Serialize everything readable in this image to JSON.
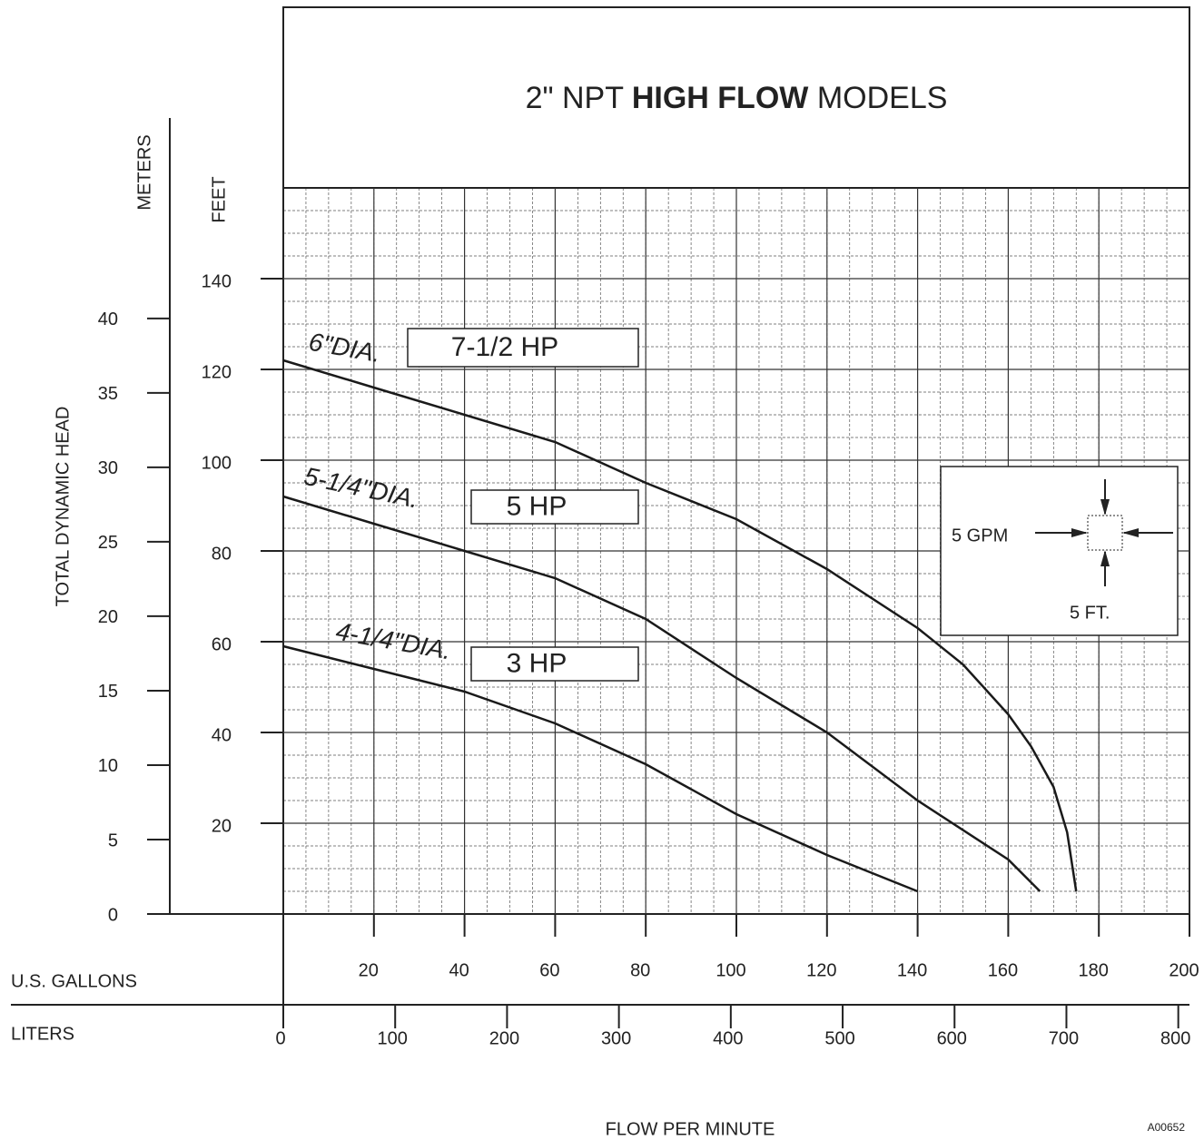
{
  "chart_data": {
    "type": "line",
    "title": [
      "2\" NPT ",
      "HIGH FLOW",
      " MODELS"
    ],
    "y_label": "TOTAL DYNAMIC HEAD",
    "y_unit_label": "FEET",
    "y2_unit_label": "METERS",
    "x_unit_label": "U.S. GALLONS",
    "x2_unit_label": "LITERS",
    "x_label": "FLOW PER MINUTE",
    "code": "A00652",
    "xlim": [
      0,
      200
    ],
    "xticks": [
      20,
      40,
      60,
      80,
      100,
      120,
      140,
      160,
      180,
      200
    ],
    "x2lim": [
      0,
      810
    ],
    "x2ticks": [
      0,
      100,
      200,
      300,
      400,
      500,
      600,
      700,
      800
    ],
    "ylim": [
      0,
      160
    ],
    "yticks": [
      20,
      40,
      60,
      80,
      100,
      120,
      140
    ],
    "y2lim": [
      0,
      48.77
    ],
    "y2ticks": [
      0,
      5,
      10,
      15,
      20,
      25,
      30,
      35,
      40
    ],
    "grid": true,
    "minor_grid": 5,
    "series": [
      {
        "name": "7-1/2 HP",
        "color": "#1a1a1a",
        "annotation": "6\"DIA.",
        "x": [
          0,
          20,
          40,
          60,
          80,
          100,
          120,
          140,
          150,
          160,
          165,
          170,
          173,
          175
        ],
        "values": [
          122,
          116,
          110,
          104,
          95,
          87,
          76,
          63,
          55,
          44,
          37,
          28,
          18,
          5
        ]
      },
      {
        "name": "5 HP",
        "color": "#1a1a1a",
        "annotation": "5-1/4\"DIA.",
        "x": [
          0,
          20,
          40,
          60,
          80,
          100,
          120,
          140,
          160,
          167
        ],
        "values": [
          92,
          86,
          80,
          74,
          65,
          52,
          40,
          25,
          12,
          5
        ]
      },
      {
        "name": "3 HP",
        "color": "#1a1a1a",
        "annotation": "4-1/4\"DIA.",
        "x": [
          0,
          20,
          40,
          60,
          80,
          100,
          120,
          140
        ],
        "values": [
          59,
          54,
          49,
          42,
          33,
          22,
          13,
          5
        ]
      }
    ],
    "inset": {
      "x_label": "5 GPM",
      "y_label": "5 FT."
    }
  }
}
